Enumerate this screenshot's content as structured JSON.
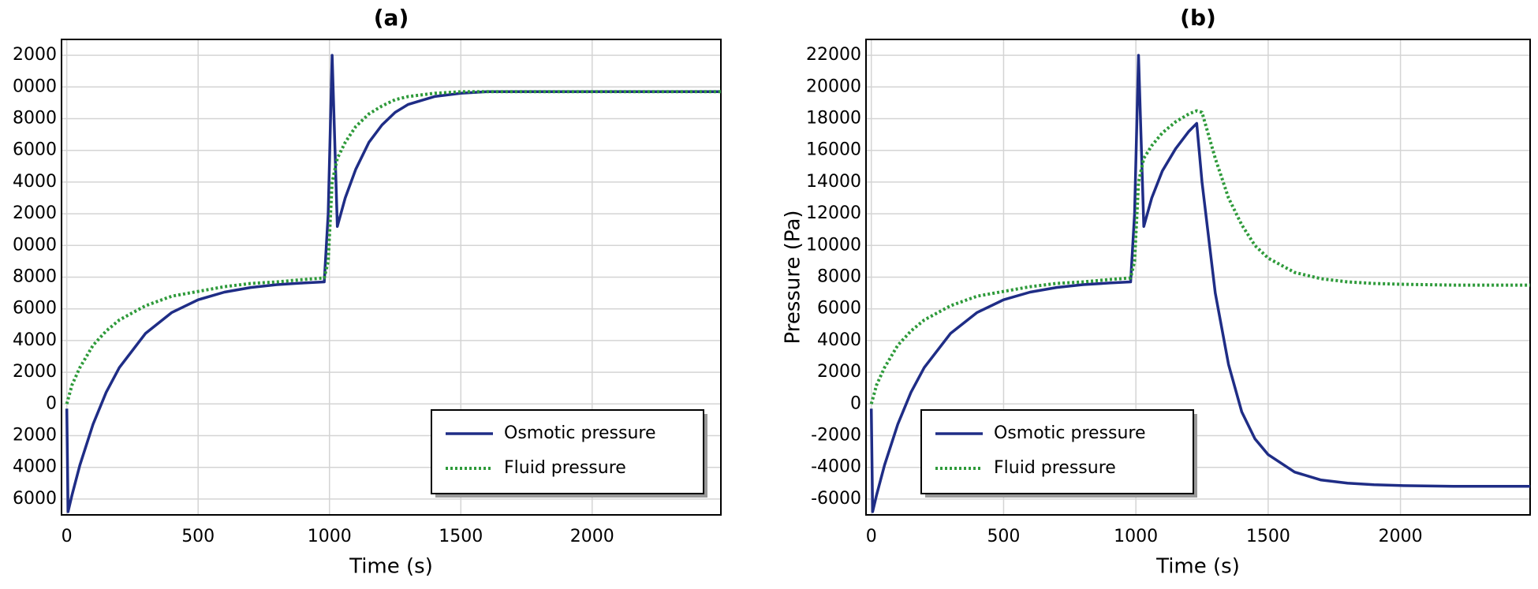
{
  "chart_data": [
    {
      "type": "line",
      "title": "(a)",
      "x_label": "Time (s)",
      "x": [
        0,
        5,
        20,
        50,
        100,
        150,
        200,
        300,
        400,
        500,
        600,
        700,
        800,
        900,
        980,
        995,
        1010,
        1030,
        1060,
        1100,
        1150,
        1200,
        1250,
        1300,
        1400,
        1500,
        1600,
        1800,
        2000,
        2200,
        2490
      ],
      "series": [
        {
          "name": "Osmotic pressure",
          "color": "#1f2d86",
          "style": "solid",
          "values": [
            -300,
            -6800,
            -5745,
            -3858,
            -1281,
            733,
            2296,
            4457,
            5771,
            6573,
            7055,
            7347,
            7525,
            7634,
            7700,
            12000,
            22000,
            11200,
            13000,
            14800,
            16500,
            17600,
            18400,
            18900,
            19400,
            19600,
            19700,
            19700,
            19700,
            19700,
            19700
          ]
        },
        {
          "name": "Fluid pressure",
          "color": "#2e9a3a",
          "style": "dotted",
          "values": [
            0,
            300,
            1200,
            2300,
            3700,
            4600,
            5300,
            6200,
            6800,
            7100,
            7400,
            7600,
            7700,
            7850,
            7950,
            9000,
            14000,
            15500,
            16500,
            17500,
            18300,
            18800,
            19200,
            19400,
            19600,
            19700,
            19700,
            19700,
            19700,
            19700,
            19700
          ]
        }
      ],
      "xlim": [
        -20,
        2490
      ],
      "xticks": [
        0,
        500,
        1000,
        1500,
        2000
      ],
      "ylim": [
        -7000,
        23000
      ],
      "yticks": [
        {
          "value": -6000,
          "label": "6000"
        },
        {
          "value": -4000,
          "label": "4000"
        },
        {
          "value": -2000,
          "label": "2000"
        },
        0,
        2000,
        4000,
        6000,
        8000,
        {
          "value": 10000,
          "label": "0000"
        },
        {
          "value": 12000,
          "label": "2000"
        },
        {
          "value": 14000,
          "label": "4000"
        },
        {
          "value": 16000,
          "label": "6000"
        },
        {
          "value": 18000,
          "label": "8000"
        },
        {
          "value": 20000,
          "label": "0000"
        },
        {
          "value": 22000,
          "label": "2000"
        }
      ],
      "grid": true,
      "legend": "lower right"
    },
    {
      "type": "line",
      "title": "(b)",
      "x_label": "Time (s)",
      "y_label": "Pressure (Pa)",
      "x": [
        0,
        5,
        20,
        50,
        100,
        150,
        200,
        300,
        400,
        500,
        600,
        700,
        800,
        900,
        980,
        995,
        1010,
        1030,
        1060,
        1100,
        1150,
        1200,
        1230,
        1250,
        1300,
        1350,
        1400,
        1450,
        1500,
        1600,
        1700,
        1800,
        1900,
        2000,
        2200,
        2490
      ],
      "series": [
        {
          "name": "Osmotic pressure",
          "color": "#1f2d86",
          "style": "solid",
          "values": [
            -300,
            -6800,
            -5745,
            -3858,
            -1281,
            733,
            2296,
            4457,
            5771,
            6573,
            7055,
            7347,
            7525,
            7634,
            7700,
            12000,
            22000,
            11200,
            13000,
            14700,
            16100,
            17200,
            17700,
            14000,
            7000,
            2500,
            -500,
            -2200,
            -3200,
            -4300,
            -4800,
            -5000,
            -5100,
            -5150,
            -5200,
            -5200
          ]
        },
        {
          "name": "Fluid pressure",
          "color": "#2e9a3a",
          "style": "dotted",
          "values": [
            0,
            300,
            1200,
            2300,
            3700,
            4600,
            5300,
            6200,
            6800,
            7100,
            7400,
            7600,
            7700,
            7850,
            7950,
            9000,
            14000,
            15500,
            16300,
            17100,
            17800,
            18300,
            18500,
            18400,
            15500,
            13000,
            11300,
            10000,
            9200,
            8300,
            7900,
            7700,
            7600,
            7550,
            7500,
            7500
          ]
        }
      ],
      "xlim": [
        -20,
        2490
      ],
      "xticks": [
        0,
        500,
        1000,
        1500,
        2000
      ],
      "ylim": [
        -7000,
        23000
      ],
      "yticks": [
        -6000,
        -4000,
        -2000,
        0,
        2000,
        4000,
        6000,
        8000,
        10000,
        12000,
        14000,
        16000,
        18000,
        20000,
        22000
      ],
      "grid": true,
      "legend": "lower left"
    }
  ]
}
